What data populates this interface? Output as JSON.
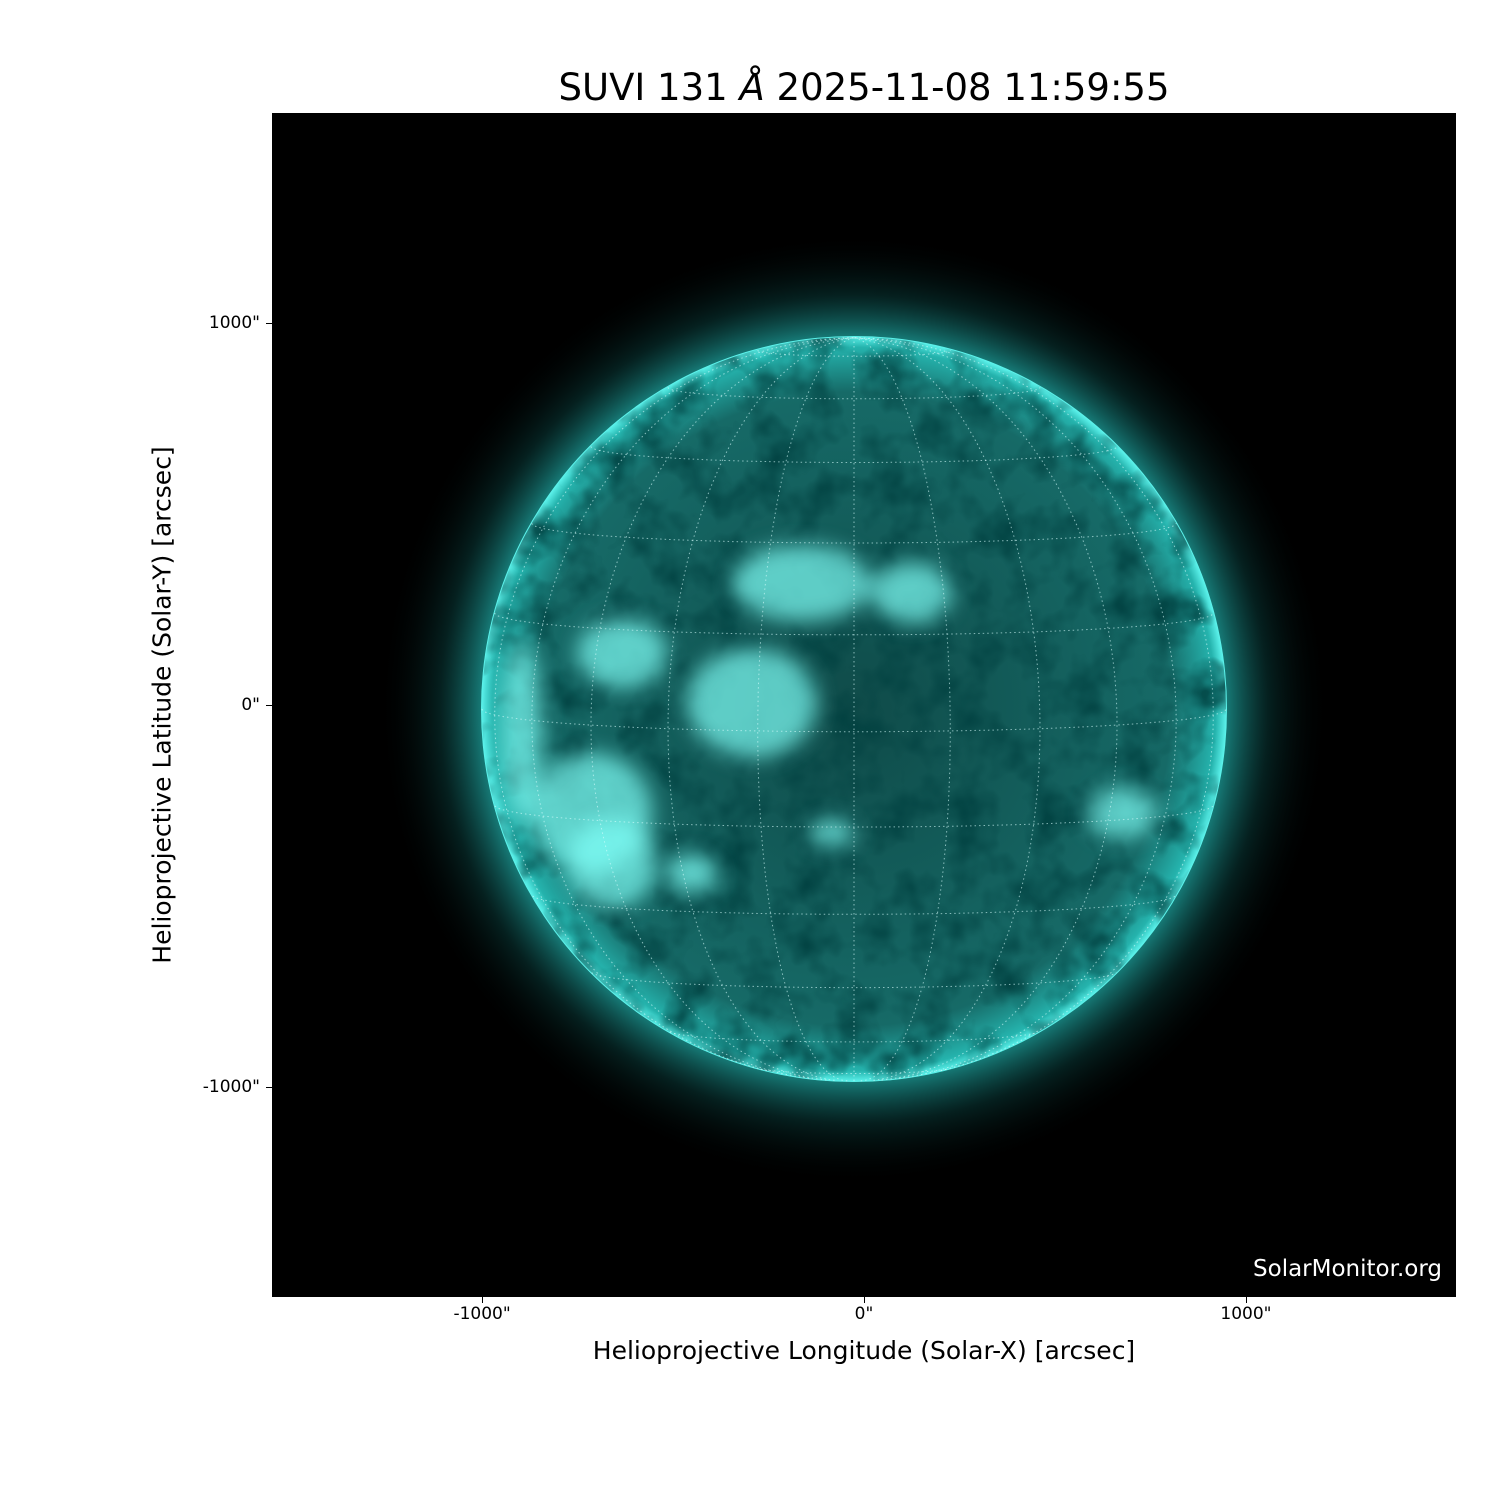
{
  "chart_data": {
    "type": "image",
    "title_prefix": "SUVI 131",
    "title_unit": "Å",
    "title_date": "2025-11-08 11:59:55",
    "xlabel": "Helioprojective Longitude (Solar-X) [arcsec]",
    "ylabel": "Helioprojective Latitude (Solar-Y) [arcsec]",
    "xlim": [
      -1550,
      1550
    ],
    "ylim": [
      -1550,
      1550
    ],
    "xticks": [
      {
        "value": -1000,
        "label": "-1000\""
      },
      {
        "value": 0,
        "label": "0\""
      },
      {
        "value": 1000,
        "label": "1000\""
      }
    ],
    "yticks": [
      {
        "value": 1000,
        "label": "1000\""
      },
      {
        "value": 0,
        "label": "0\""
      },
      {
        "value": -1000,
        "label": "-1000\""
      }
    ],
    "colormap": "teal (SUVI 131)",
    "accent_color": "#2fe0d8",
    "grid": "heliographic, dotted, 15° spacing",
    "grid_spacing_deg": 15
  },
  "watermark": "SolarMonitor.org"
}
